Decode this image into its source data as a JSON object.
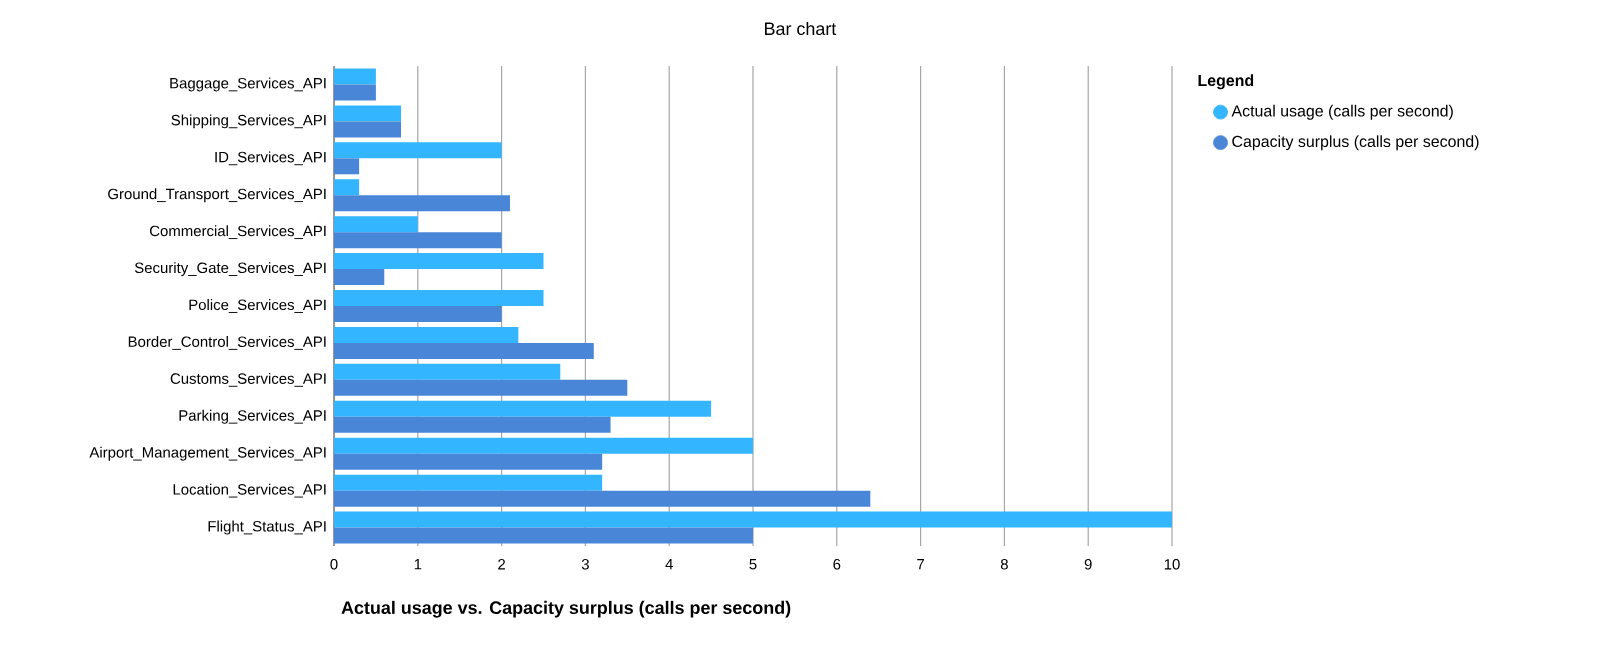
{
  "chart_data": {
    "type": "bar",
    "orientation": "horizontal",
    "title": "Bar chart",
    "xlabel": "Actual usage vs. Capacity surplus (calls per second)",
    "legend_title": "Legend",
    "legend": "right",
    "grid": "x",
    "categories": [
      "Baggage_Services_API",
      "Shipping_Services_API",
      "ID_Services_API",
      "Ground_Transport_Services_API",
      "Commercial_Services_API",
      "Security_Gate_Services_API",
      "Police_Services_API",
      "Border_Control_Services_API",
      "Customs_Services_API",
      "Parking_Services_API",
      "Airport_Management_Services_API",
      "Location_Services_API",
      "Flight_Status_API"
    ],
    "series": [
      {
        "name": "Actual usage (calls per second)",
        "color": "#33b6ff",
        "values": [
          0.5,
          0.8,
          2.0,
          0.3,
          1.0,
          2.5,
          2.5,
          2.2,
          2.7,
          4.5,
          5.0,
          3.2,
          10.0
        ]
      },
      {
        "name": "Capacity surplus (calls per second)",
        "color": "#4a86d8",
        "values": [
          0.5,
          0.8,
          0.3,
          2.1,
          2.0,
          0.6,
          2.0,
          3.1,
          3.5,
          3.3,
          3.2,
          6.4,
          5.0
        ]
      }
    ],
    "xlim": [
      0,
      10
    ],
    "xticks": [
      0,
      1,
      2,
      3,
      4,
      5,
      6,
      7,
      8,
      9,
      10
    ]
  }
}
